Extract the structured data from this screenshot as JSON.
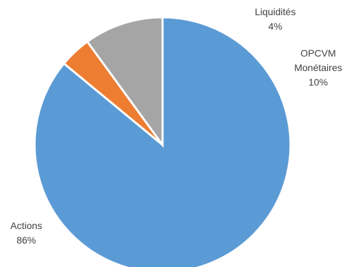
{
  "chart_data": {
    "type": "pie",
    "start_angle_deg": 0,
    "direction": "clockwise",
    "slices": [
      {
        "label_lines": [
          "Actions"
        ],
        "pct_label": "86%",
        "value": 86,
        "color": "#5B9BD5"
      },
      {
        "label_lines": [
          "Liquidités"
        ],
        "pct_label": "4%",
        "value": 4,
        "color": "#ED7D31"
      },
      {
        "label_lines": [
          "OPCVM",
          "Monétaires"
        ],
        "pct_label": "10%",
        "value": 10,
        "color": "#A5A5A5"
      }
    ]
  }
}
